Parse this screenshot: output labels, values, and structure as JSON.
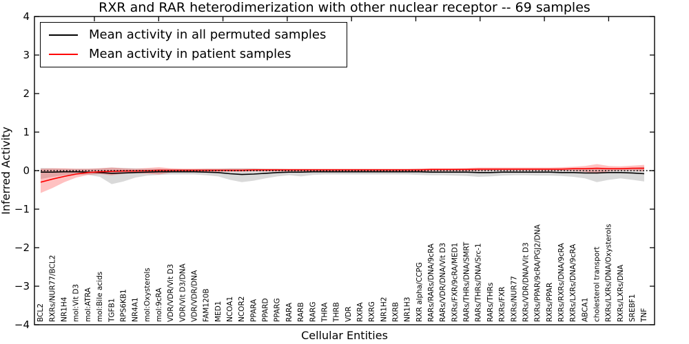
{
  "title": "RXR and RAR heterodimerization with other nuclear receptor -- 69 samples",
  "legend": {
    "items": [
      {
        "label": "Mean activity in all permuted samples",
        "color": "#000000"
      },
      {
        "label": "Mean activity in patient samples",
        "color": "#ff0000"
      }
    ]
  },
  "colors": {
    "permuted_line": "#000000",
    "permuted_band": "#aaaaaa",
    "patient_line": "#ff0000",
    "patient_band": "#ff3333",
    "zero_line": "#000000",
    "frame": "#000000"
  },
  "chart_data": {
    "type": "line",
    "title": "RXR and RAR heterodimerization with other nuclear receptor -- 69 samples",
    "xlabel": "Cellular Entities",
    "ylabel": "Inferred Activity",
    "ylim": [
      -4,
      4
    ],
    "yticks": [
      4,
      3,
      2,
      1,
      0,
      -1,
      -2,
      -3,
      -4
    ],
    "grid": false,
    "legend_position": "upper left",
    "zero_reference_line": 0,
    "sample_count": 69,
    "categories": [
      "BCL2",
      "RXRs/NUR77/BCL2",
      "NR1H4",
      "mol:Vit D3",
      "mol:ATRA",
      "mol:Bile acids",
      "TGFB1",
      "RPS6KB1",
      "NR4A1",
      "mol:Oxysterols",
      "mol:9cRA",
      "VDR/VDR/Vit D3",
      "VDR/Vit D3/DNA",
      "VDR/VDR/DNA",
      "FAM120B",
      "MED1",
      "NCOA1",
      "NCOR2",
      "PPARA",
      "PPARD",
      "PPARG",
      "RARA",
      "RARB",
      "RARG",
      "THRA",
      "THRB",
      "VDR",
      "RXRA",
      "RXRG",
      "NR1H2",
      "RXRB",
      "NR1H3",
      "RXR alpha/CCPG",
      "RARs/RARs/DNA/9cRA",
      "RARs/VDR/DNA/Vit D3",
      "RXRs/FXR/9cRA/MED1",
      "RARs/THRs/DNA/SMRT",
      "RARs/THRs/DNA/Src-1",
      "RARs/THRs",
      "RXRs/FXR",
      "RXRs/NUR77",
      "RXRs/VDR/DNA/Vit D3",
      "RXRs/PPAR/9cRA/PGJ2/DNA",
      "RXRs/PPAR",
      "RXRs/RXRs/DNA/9cRA",
      "RXRs/LXRs/DNA/9cRA",
      "ABCA1",
      "cholesterol transport",
      "RXRs/LXRs/DNA/Oxysterols",
      "RXRs/LXRs/DNA",
      "SREBF1",
      "TNF"
    ],
    "series": [
      {
        "name": "Mean activity in all permuted samples",
        "color": "#000000",
        "values": [
          -0.04,
          -0.04,
          -0.03,
          -0.03,
          -0.04,
          -0.05,
          -0.07,
          -0.06,
          -0.05,
          -0.04,
          -0.03,
          -0.03,
          -0.03,
          -0.03,
          -0.04,
          -0.05,
          -0.08,
          -0.1,
          -0.09,
          -0.07,
          -0.05,
          -0.04,
          -0.04,
          -0.03,
          -0.03,
          -0.03,
          -0.03,
          -0.03,
          -0.03,
          -0.03,
          -0.03,
          -0.03,
          -0.03,
          -0.04,
          -0.04,
          -0.04,
          -0.04,
          -0.05,
          -0.05,
          -0.04,
          -0.04,
          -0.04,
          -0.04,
          -0.04,
          -0.05,
          -0.05,
          -0.06,
          -0.06,
          -0.05,
          -0.05,
          -0.06,
          -0.08
        ],
        "band": {
          "color": "#aaaaaa",
          "opacity": 0.45,
          "upper": [
            0.07,
            0.06,
            0.05,
            0.05,
            0.05,
            0.06,
            0.08,
            0.07,
            0.06,
            0.05,
            0.05,
            0.04,
            0.04,
            0.04,
            0.05,
            0.05,
            0.06,
            0.06,
            0.06,
            0.05,
            0.05,
            0.04,
            0.04,
            0.04,
            0.04,
            0.04,
            0.04,
            0.04,
            0.04,
            0.04,
            0.04,
            0.04,
            0.04,
            0.04,
            0.04,
            0.05,
            0.05,
            0.05,
            0.05,
            0.05,
            0.05,
            0.05,
            0.05,
            0.05,
            0.05,
            0.05,
            0.06,
            0.06,
            0.06,
            0.06,
            0.07,
            0.1
          ],
          "lower": [
            -0.22,
            -0.16,
            -0.12,
            -0.1,
            -0.11,
            -0.16,
            -0.35,
            -0.28,
            -0.18,
            -0.13,
            -0.11,
            -0.1,
            -0.1,
            -0.1,
            -0.12,
            -0.15,
            -0.24,
            -0.3,
            -0.26,
            -0.2,
            -0.15,
            -0.12,
            -0.15,
            -0.11,
            -0.1,
            -0.1,
            -0.1,
            -0.1,
            -0.1,
            -0.1,
            -0.1,
            -0.1,
            -0.11,
            -0.12,
            -0.12,
            -0.13,
            -0.14,
            -0.16,
            -0.15,
            -0.13,
            -0.12,
            -0.12,
            -0.13,
            -0.13,
            -0.14,
            -0.16,
            -0.2,
            -0.3,
            -0.24,
            -0.2,
            -0.24,
            -0.28
          ]
        }
      },
      {
        "name": "Mean activity in patient samples",
        "color": "#ff0000",
        "values": [
          -0.3,
          -0.22,
          -0.15,
          -0.09,
          -0.05,
          -0.03,
          -0.02,
          -0.01,
          -0.01,
          0.0,
          0.01,
          0.01,
          0.01,
          0.01,
          0.01,
          0.01,
          0.01,
          0.01,
          0.02,
          0.02,
          0.02,
          0.02,
          0.02,
          0.02,
          0.02,
          0.02,
          0.02,
          0.02,
          0.02,
          0.02,
          0.02,
          0.02,
          0.02,
          0.03,
          0.03,
          0.03,
          0.03,
          0.04,
          0.04,
          0.04,
          0.04,
          0.04,
          0.04,
          0.04,
          0.04,
          0.05,
          0.05,
          0.06,
          0.05,
          0.05,
          0.06,
          0.06
        ],
        "band": {
          "color": "#ff3333",
          "opacity": 0.3,
          "upper": [
            0.05,
            0.06,
            0.06,
            0.05,
            0.05,
            0.06,
            0.08,
            0.06,
            0.05,
            0.07,
            0.09,
            0.06,
            0.05,
            0.05,
            0.05,
            0.05,
            0.05,
            0.05,
            0.05,
            0.05,
            0.05,
            0.05,
            0.05,
            0.05,
            0.05,
            0.05,
            0.05,
            0.05,
            0.05,
            0.05,
            0.05,
            0.05,
            0.06,
            0.06,
            0.06,
            0.06,
            0.07,
            0.08,
            0.08,
            0.08,
            0.08,
            0.08,
            0.08,
            0.08,
            0.09,
            0.1,
            0.12,
            0.17,
            0.12,
            0.11,
            0.13,
            0.15
          ],
          "lower": [
            -0.58,
            -0.45,
            -0.3,
            -0.18,
            -0.11,
            -0.09,
            -0.12,
            -0.08,
            -0.06,
            -0.08,
            -0.1,
            -0.05,
            -0.03,
            -0.03,
            -0.03,
            -0.03,
            -0.03,
            -0.03,
            -0.02,
            -0.02,
            -0.02,
            -0.02,
            -0.02,
            -0.02,
            -0.02,
            -0.02,
            -0.02,
            -0.02,
            -0.02,
            -0.02,
            -0.02,
            -0.02,
            -0.02,
            -0.01,
            -0.01,
            -0.01,
            -0.01,
            -0.01,
            0.0,
            0.0,
            0.0,
            0.0,
            0.0,
            0.0,
            0.0,
            -0.01,
            -0.03,
            -0.08,
            -0.02,
            0.0,
            0.0,
            -0.02
          ]
        }
      }
    ]
  }
}
